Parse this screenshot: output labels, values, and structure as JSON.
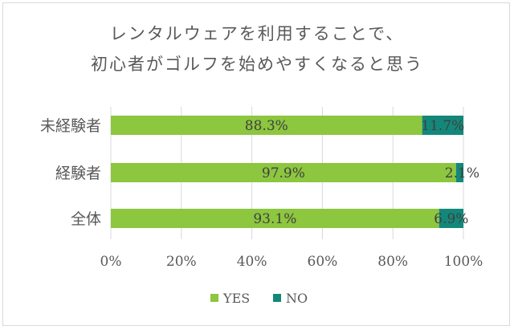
{
  "chart_data": {
    "type": "bar",
    "orientation": "horizontal",
    "stacked": true,
    "title": [
      "レンタルウェアを利用することで、",
      "初心者がゴルフを始めやすくなると思う"
    ],
    "categories": [
      "未経験者",
      "経験者",
      "全体"
    ],
    "series": [
      {
        "name": "YES",
        "values": [
          88.3,
          97.9,
          93.1
        ],
        "labels": [
          "88.3%",
          "97.9%",
          "93.1%"
        ]
      },
      {
        "name": "NO",
        "values": [
          11.7,
          2.1,
          6.9
        ],
        "labels": [
          "11.7%",
          "2.1%",
          "6.9%"
        ]
      }
    ],
    "xlim": [
      0,
      100
    ],
    "xticks": [
      "0%",
      "20%",
      "40%",
      "60%",
      "80%",
      "100%"
    ],
    "grid": true,
    "legend": "bottom",
    "colors": {
      "YES": "#8dc63f",
      "NO": "#13887a",
      "grid": "#d9d9d9",
      "text": "#595959"
    }
  }
}
